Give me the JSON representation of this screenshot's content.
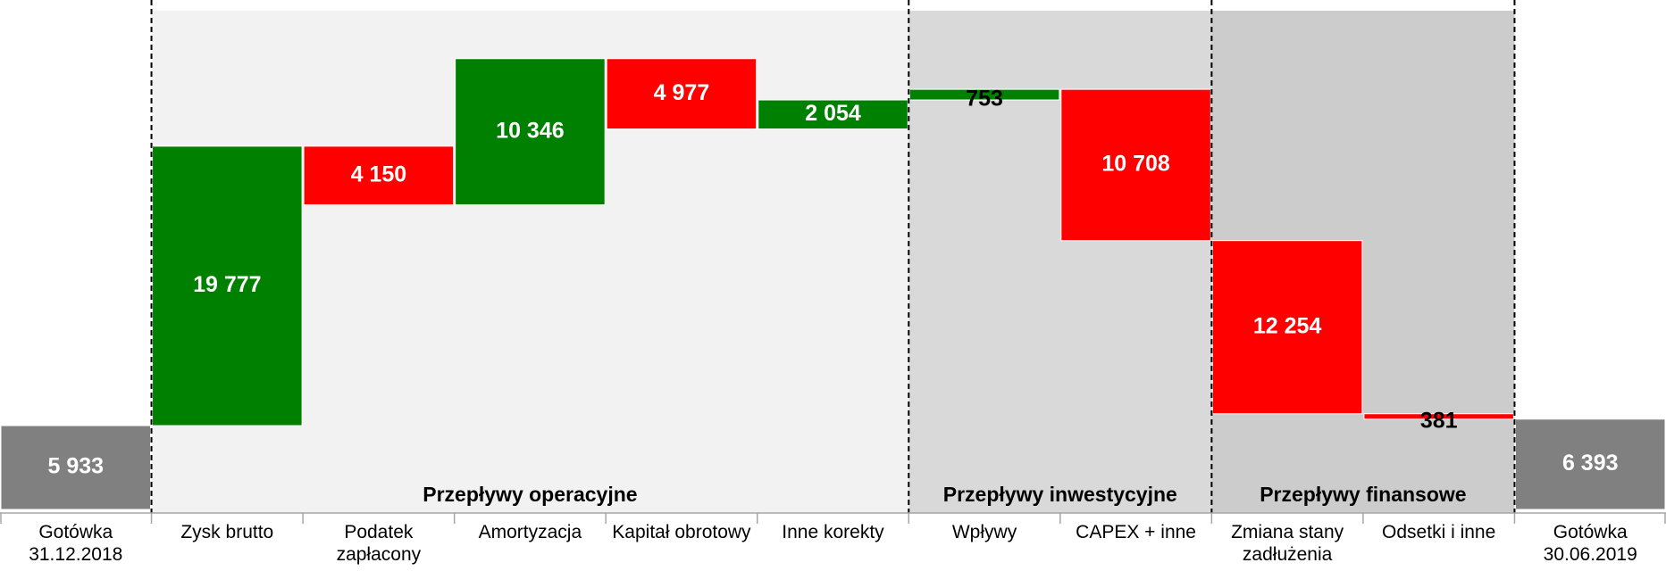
{
  "chart_data": {
    "type": "waterfall",
    "categories": [
      "Gotówka 31.12.2018",
      "Zysk brutto",
      "Podatek zapłacony",
      "Amortyzacja",
      "Kapitał obrotowy",
      "Inne korekty",
      "Wpływy",
      "CAPEX + inne",
      "Zmiana stany zadłużenia",
      "Odsetki i inne",
      "Gotówka 30.06.2019"
    ],
    "measure": [
      "absolute",
      "increase",
      "decrease",
      "increase",
      "decrease",
      "increase",
      "increase",
      "decrease",
      "decrease",
      "decrease",
      "total"
    ],
    "values": [
      5933,
      19777,
      4150,
      10346,
      4977,
      2054,
      753,
      10708,
      12254,
      381,
      6393
    ],
    "value_labels": [
      "5 933",
      "19 777",
      "4 150",
      "10 346",
      "4 977",
      "2 054",
      "753",
      "10 708",
      "12 254",
      "381",
      "6 393"
    ],
    "colors": {
      "absolute": "#808080",
      "total": "#808080",
      "increase": "#008000",
      "decrease": "#ff0000"
    },
    "ylim": [
      0,
      35300
    ],
    "sections": [
      {
        "name": "Przepływy operacyjne",
        "categories": [
          1,
          5
        ],
        "color": "#f2f2f2"
      },
      {
        "name": "Przepływy inwestycyjne",
        "categories": [
          6,
          7
        ],
        "color": "#d9d9d9"
      },
      {
        "name": "Przepływy finansowe",
        "categories": [
          8,
          9
        ],
        "color": "#cccccc"
      }
    ]
  }
}
